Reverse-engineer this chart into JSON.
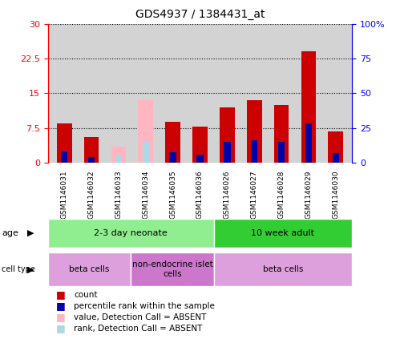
{
  "title": "GDS4937 / 1384431_at",
  "samples": [
    "GSM1146031",
    "GSM1146032",
    "GSM1146033",
    "GSM1146034",
    "GSM1146035",
    "GSM1146036",
    "GSM1146026",
    "GSM1146027",
    "GSM1146028",
    "GSM1146029",
    "GSM1146030"
  ],
  "count_values": [
    8.5,
    5.5,
    0.0,
    0.0,
    8.8,
    7.8,
    12.0,
    13.5,
    12.5,
    24.0,
    6.8
  ],
  "rank_values": [
    2.5,
    1.2,
    0.0,
    0.0,
    2.2,
    1.8,
    4.5,
    4.8,
    4.5,
    8.5,
    2.0
  ],
  "absent_count": [
    0.0,
    0.0,
    3.5,
    13.5,
    0.0,
    0.0,
    0.0,
    0.0,
    0.0,
    0.0,
    0.0
  ],
  "absent_rank": [
    0.0,
    0.0,
    1.5,
    4.5,
    0.0,
    0.0,
    0.0,
    0.0,
    0.0,
    0.0,
    0.0
  ],
  "ylim_left": [
    0,
    30
  ],
  "ylim_right": [
    0,
    100
  ],
  "yticks_left": [
    0,
    7.5,
    15,
    22.5,
    30
  ],
  "yticks_right": [
    0,
    25,
    50,
    75,
    100
  ],
  "age_groups": [
    {
      "label": "2-3 day neonate",
      "start": 0,
      "end": 6,
      "color": "#90EE90"
    },
    {
      "label": "10 week adult",
      "start": 6,
      "end": 11,
      "color": "#32CD32"
    }
  ],
  "cell_type_groups": [
    {
      "label": "beta cells",
      "start": 0,
      "end": 3,
      "color": "#DDA0DD"
    },
    {
      "label": "non-endocrine islet\ncells",
      "start": 3,
      "end": 6,
      "color": "#CC77CC"
    },
    {
      "label": "beta cells",
      "start": 6,
      "end": 11,
      "color": "#DDA0DD"
    }
  ],
  "legend_items": [
    {
      "label": "count",
      "color": "#CC0000"
    },
    {
      "label": "percentile rank within the sample",
      "color": "#0000AA"
    },
    {
      "label": "value, Detection Call = ABSENT",
      "color": "#FFB6C1"
    },
    {
      "label": "rank, Detection Call = ABSENT",
      "color": "#ADD8E6"
    }
  ],
  "count_color": "#CC0000",
  "rank_color": "#0000AA",
  "absent_count_color": "#FFB6C1",
  "absent_rank_color": "#ADD8E6",
  "plot_bg_color": "#D3D3D3",
  "sample_bg_color": "#C8C8C8"
}
